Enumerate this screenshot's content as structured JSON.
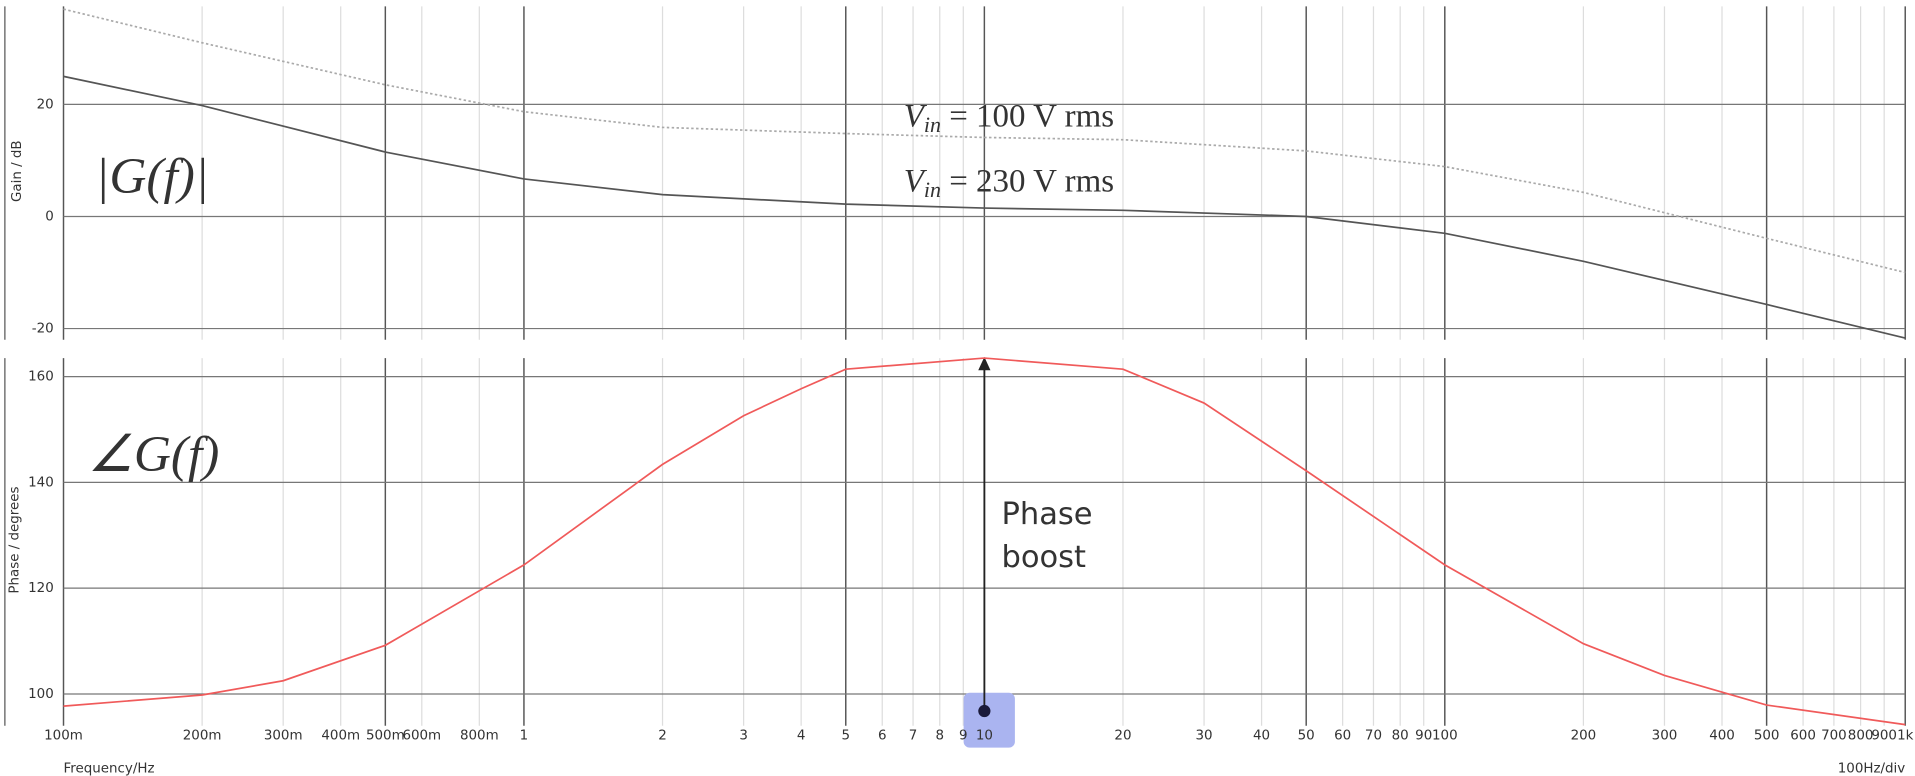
{
  "chart_data": [
    {
      "type": "line",
      "ylabel": "Gain / dB",
      "log_x": true,
      "grid": true,
      "xlim": [
        0.1,
        1000
      ],
      "ylim": [
        -22,
        37.5
      ],
      "yticks": [
        -20,
        0,
        20
      ],
      "x": [
        0.1,
        0.2,
        0.5,
        1,
        2,
        5,
        10,
        20,
        50,
        100,
        200,
        500,
        1000
      ],
      "series": [
        {
          "color": "#aaaaaa",
          "dashed": true,
          "values": [
            37,
            31,
            23.5,
            18.7,
            15.9,
            14.8,
            14.1,
            13.7,
            11.7,
            8.9,
            4.3,
            -3.9,
            -10
          ]
        },
        {
          "color": "#555555",
          "dashed": false,
          "values": [
            25,
            19.8,
            11.5,
            6.7,
            3.9,
            2.2,
            1.5,
            1.1,
            0,
            -3,
            -8,
            -15.7,
            -21.7
          ]
        }
      ],
      "annotations": {
        "magnitude": "|G(f)|",
        "vin_100": {
          "symbol": "V",
          "subscript": "in",
          "text": " = 100 V rms"
        },
        "vin_230": {
          "symbol": "V",
          "subscript": "in",
          "text": " = 230 V rms"
        }
      }
    },
    {
      "type": "line",
      "ylabel": "Phase / degrees",
      "xlabel": "Frequency/Hz",
      "x_scale_note": "100Hz/div",
      "log_x": true,
      "grid": true,
      "xlim": [
        0.1,
        1000
      ],
      "ylim": [
        94,
        163.5
      ],
      "yticks": [
        100,
        120,
        140,
        160
      ],
      "xticks": [
        {
          "value": 0.1,
          "label": "100m"
        },
        {
          "value": 0.2,
          "label": "200m"
        },
        {
          "value": 0.3,
          "label": "300m"
        },
        {
          "value": 0.4,
          "label": "400m"
        },
        {
          "value": 0.5,
          "label": "500m"
        },
        {
          "value": 0.6,
          "label": "600m"
        },
        {
          "value": 0.8,
          "label": "800m"
        },
        1,
        2,
        3,
        4,
        5,
        6,
        7,
        8,
        9,
        10,
        20,
        30,
        40,
        50,
        60,
        70,
        80,
        90,
        100,
        200,
        300,
        400,
        500,
        600,
        700,
        800,
        900,
        {
          "value": 1000,
          "label": "1k"
        }
      ],
      "x": [
        0.1,
        0.2,
        0.3,
        0.5,
        1,
        2,
        3,
        4,
        5,
        10,
        20,
        30,
        50,
        100,
        200,
        300,
        500,
        1000
      ],
      "series": [
        {
          "color": "#f05a5a",
          "values": [
            97.7,
            99.8,
            102.5,
            109.2,
            124.4,
            143.4,
            152.6,
            157.7,
            161.4,
            163.5,
            161.4,
            155,
            142.2,
            124.4,
            109.5,
            103.5,
            97.9,
            94.2
          ]
        }
      ],
      "annotations": {
        "angle": "∠G(f)",
        "boost": [
          "Phase",
          "boost"
        ]
      }
    }
  ]
}
